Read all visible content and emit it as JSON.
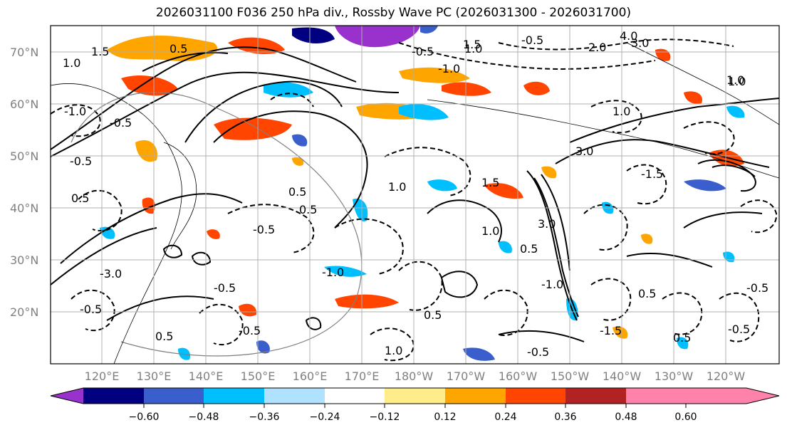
{
  "title": "2026031100 F036 250 hPa div., Rossby Wave PC (2026031300 - 2026031700)",
  "map": {
    "lat_labels": [
      "70°N",
      "60°N",
      "50°N",
      "40°N",
      "30°N",
      "20°N"
    ],
    "lon_labels": [
      "120°E",
      "130°E",
      "140°E",
      "150°E",
      "160°E",
      "170°E",
      "180°W",
      "170°W",
      "160°W",
      "150°W",
      "140°W",
      "130°W",
      "120°W"
    ],
    "contour_labels": [
      "1.5",
      "1.0",
      "0.5",
      "-0.5",
      "-1.0",
      "1.0",
      "1.5",
      "2.0",
      "3.0",
      "4.0",
      "-3.0",
      "-0.5",
      "1.0",
      "-1.0",
      "-0.5",
      "1.0",
      "3.0",
      "0.5",
      "-0.5",
      "1.0",
      "1.5",
      "-1.0",
      "-0.5",
      "0.5",
      "0.5",
      "-1.5",
      "-0.5",
      "1.0",
      "0.5",
      "-1.0",
      "0.5",
      "-0.5",
      "-0.5",
      "0.5",
      "-0.5",
      "1.0",
      "3.0",
      "-1.5",
      "0.5",
      "-0.5",
      "1.0",
      "0.5",
      "-0.5"
    ]
  },
  "colorbar": {
    "colors": [
      "#9932cc",
      "#000080",
      "#3a5fcd",
      "#00bfff",
      "#b0e2ff",
      "#ffffff",
      "#ffec8b",
      "#ffa500",
      "#ff4500",
      "#b22222",
      "#ff82ab"
    ],
    "ticks": [
      "−0.60",
      "−0.48",
      "−0.36",
      "−0.24",
      "−0.12",
      "0.12",
      "0.24",
      "0.36",
      "0.48",
      "0.60"
    ]
  },
  "colors": {
    "frame": "#000000",
    "grid": "#b0b0b0",
    "tick_text": "#808080"
  }
}
